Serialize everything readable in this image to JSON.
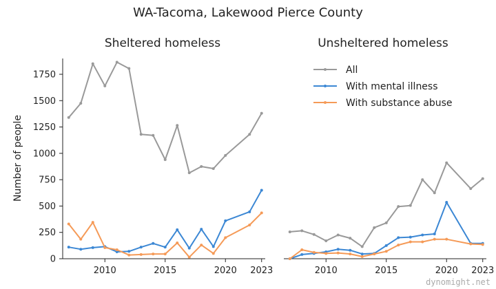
{
  "title": "WA-Tacoma, Lakewood Pierce County",
  "watermark": "dynomight.net",
  "colors": {
    "all": "#999999",
    "mental": "#3b87d4",
    "substance": "#f59a57",
    "axis": "#222222"
  },
  "chart_data": [
    {
      "type": "line",
      "title": "Sheltered homeless",
      "ylabel": "Number of people",
      "xlim": [
        2006.5,
        2023.3
      ],
      "ylim": [
        0,
        1900
      ],
      "xticks": [
        2010,
        2015,
        2020,
        2023
      ],
      "yticks": [
        0,
        250,
        500,
        750,
        1000,
        1250,
        1500,
        1750
      ],
      "grid": false,
      "series": [
        {
          "name": "All",
          "color_key": "all",
          "x": [
            2007,
            2008,
            2009,
            2010,
            2011,
            2012,
            2013,
            2014,
            2015,
            2016,
            2017,
            2018,
            2019,
            2020,
            2022,
            2023
          ],
          "y": [
            1340,
            1475,
            1850,
            1640,
            1865,
            1805,
            1180,
            1170,
            940,
            1265,
            815,
            875,
            855,
            980,
            1180,
            1380
          ]
        },
        {
          "name": "With mental illness",
          "color_key": "mental",
          "x": [
            2007,
            2008,
            2009,
            2010,
            2011,
            2012,
            2013,
            2014,
            2015,
            2016,
            2017,
            2018,
            2019,
            2020,
            2022,
            2023
          ],
          "y": [
            110,
            90,
            105,
            115,
            65,
            70,
            110,
            145,
            110,
            275,
            100,
            280,
            115,
            360,
            445,
            650
          ]
        },
        {
          "name": "With substance abuse",
          "color_key": "substance",
          "x": [
            2007,
            2008,
            2009,
            2010,
            2011,
            2012,
            2013,
            2014,
            2015,
            2016,
            2017,
            2018,
            2019,
            2020,
            2022,
            2023
          ],
          "y": [
            330,
            185,
            345,
            105,
            85,
            35,
            40,
            45,
            45,
            150,
            15,
            130,
            50,
            200,
            320,
            435
          ]
        }
      ]
    },
    {
      "type": "line",
      "title": "Unsheltered homeless",
      "xlim": [
        2006.5,
        2023.3
      ],
      "ylim": [
        0,
        1900
      ],
      "xticks": [
        2010,
        2015,
        2020,
        2023
      ],
      "grid": false,
      "legend": {
        "position": "top-right",
        "entries": [
          "All",
          "With mental illness",
          "With substance abuse"
        ]
      },
      "series": [
        {
          "name": "All",
          "color_key": "all",
          "x": [
            2007,
            2008,
            2009,
            2010,
            2011,
            2012,
            2013,
            2014,
            2015,
            2016,
            2017,
            2018,
            2019,
            2020,
            2022,
            2023
          ],
          "y": [
            255,
            265,
            230,
            170,
            225,
            195,
            115,
            295,
            340,
            495,
            505,
            750,
            625,
            910,
            665,
            760
          ]
        },
        {
          "name": "With mental illness",
          "color_key": "mental",
          "x": [
            2007,
            2008,
            2009,
            2010,
            2011,
            2012,
            2013,
            2014,
            2015,
            2016,
            2017,
            2018,
            2019,
            2020,
            2022,
            2023
          ],
          "y": [
            0,
            40,
            50,
            65,
            90,
            80,
            45,
            50,
            125,
            200,
            205,
            225,
            235,
            535,
            145,
            145
          ]
        },
        {
          "name": "With substance abuse",
          "color_key": "substance",
          "x": [
            2007,
            2008,
            2009,
            2010,
            2011,
            2012,
            2013,
            2014,
            2015,
            2016,
            2017,
            2018,
            2019,
            2020,
            2022,
            2023
          ],
          "y": [
            0,
            85,
            60,
            50,
            55,
            45,
            20,
            45,
            70,
            130,
            160,
            160,
            185,
            185,
            140,
            135
          ]
        }
      ]
    }
  ]
}
